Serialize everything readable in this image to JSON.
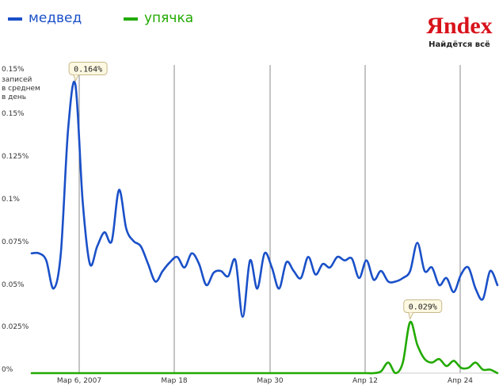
{
  "chart_data": {
    "type": "line",
    "legend": [
      "медвед",
      "упячка"
    ],
    "y_ticks": [
      "0.15%",
      "0.15%",
      "0.125%",
      "0.1%",
      "0.075%",
      "0.05%",
      "0.025%",
      "0%"
    ],
    "y_unit_label": [
      "записей",
      "в среднем",
      "в день"
    ],
    "x_ticks": [
      "Мар 6, 2007",
      "Мар 18",
      "Мар 30",
      "Апр 12",
      "Апр 24"
    ],
    "ylim": [
      0,
      0.175
    ],
    "grid": "vertical",
    "legend_position": "top-left",
    "series": [
      {
        "name": "медвед",
        "color": "#1a50c8",
        "values": [
          0.068,
          0.068,
          0.064,
          0.048,
          0.068,
          0.138,
          0.164,
          0.098,
          0.062,
          0.072,
          0.08,
          0.075,
          0.104,
          0.082,
          0.075,
          0.072,
          0.062,
          0.052,
          0.058,
          0.063,
          0.066,
          0.06,
          0.068,
          0.062,
          0.05,
          0.057,
          0.058,
          0.055,
          0.064,
          0.032,
          0.064,
          0.048,
          0.068,
          0.06,
          0.048,
          0.063,
          0.058,
          0.054,
          0.066,
          0.056,
          0.062,
          0.06,
          0.066,
          0.064,
          0.065,
          0.054,
          0.064,
          0.053,
          0.058,
          0.052,
          0.052,
          0.054,
          0.058,
          0.074,
          0.058,
          0.06,
          0.05,
          0.054,
          0.046,
          0.056,
          0.06,
          0.048,
          0.042,
          0.058,
          0.05
        ]
      },
      {
        "name": "упячка",
        "color": "#22aa00",
        "values": [
          0,
          0,
          0,
          0,
          0,
          0,
          0,
          0,
          0,
          0,
          0,
          0,
          0,
          0,
          0,
          0,
          0,
          0,
          0,
          0,
          0,
          0,
          0,
          0,
          0,
          0,
          0,
          0,
          0,
          0,
          0,
          0,
          0,
          0,
          0,
          0,
          0,
          0,
          0,
          0,
          0,
          0,
          0,
          0,
          0,
          0,
          0,
          0,
          0.001,
          0.006,
          0,
          0.006,
          0.029,
          0.016,
          0.008,
          0.006,
          0.008,
          0.004,
          0.007,
          0.003,
          0.003,
          0.006,
          0.002,
          0.002,
          0
        ]
      }
    ],
    "annotations": [
      {
        "text": "0.164%",
        "series": 0,
        "index": 6
      },
      {
        "text": "0.029%",
        "series": 1,
        "index": 52
      }
    ]
  },
  "brand": {
    "logo_text": "Яndex",
    "tagline": "Найдётся всё",
    "color": "#d8121b"
  }
}
